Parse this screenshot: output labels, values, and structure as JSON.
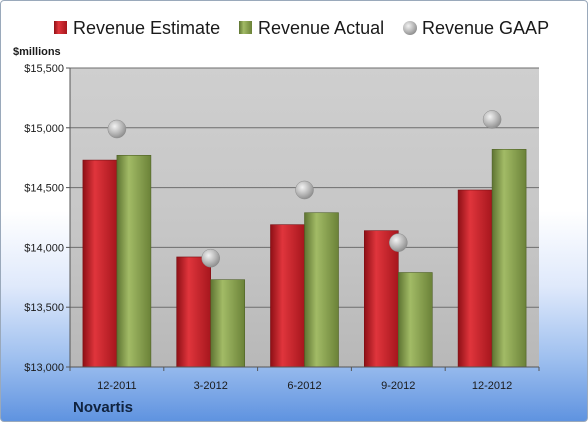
{
  "company": "Novartis",
  "colors": {
    "estimate": "#c8232b",
    "actual": "#8da553",
    "gaap": "#b3b3b3"
  },
  "chart_data": {
    "type": "bar",
    "unit_label": "$millions",
    "categories": [
      "12-2011",
      "3-2012",
      "6-2012",
      "9-2012",
      "12-2012"
    ],
    "series": [
      {
        "name": "Revenue Estimate",
        "kind": "bar",
        "values": [
          14730,
          13920,
          14190,
          14140,
          14480
        ]
      },
      {
        "name": "Revenue Actual",
        "kind": "bar",
        "values": [
          14770,
          13730,
          14290,
          13790,
          14820
        ]
      },
      {
        "name": "Revenue GAAP",
        "kind": "marker",
        "values": [
          14990,
          13910,
          14480,
          14040,
          15070
        ]
      }
    ],
    "ylim": [
      13000,
      15500
    ],
    "yticks": [
      13000,
      13500,
      14000,
      14500,
      15000,
      15500
    ],
    "ytick_labels": [
      "$13,000",
      "$13,500",
      "$14,000",
      "$14,500",
      "$15,000",
      "$15,500"
    ],
    "grid": true,
    "legend_position": "top"
  }
}
